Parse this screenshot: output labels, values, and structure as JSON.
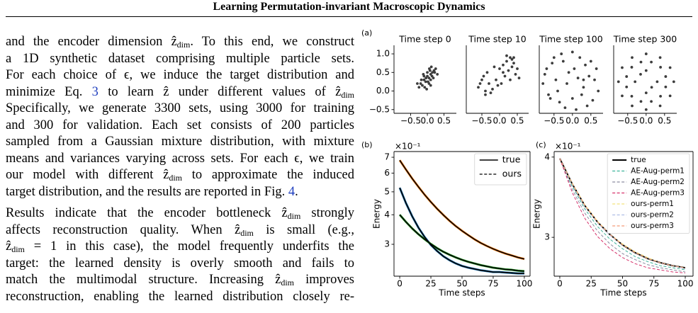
{
  "header": {
    "title": "Learning Permutation-invariant Macroscopic Dynamics"
  },
  "body": {
    "paragraphs": [
      {
        "lines": [
          [
            "and the encoder dimension ẑ",
            {
              "sub": "dim"
            },
            ". To this end, we construct"
          ],
          [
            "a 1D synthetic dataset comprising multiple particle sets."
          ],
          [
            "For each choice of ϵ, we induce the target distribution and"
          ],
          [
            "minimize Eq. ",
            {
              "link": "3"
            },
            " to learn ẑ under different values of ẑ",
            {
              "sub": "dim"
            }
          ],
          [
            "Specifically, we generate 3300 sets, using 3000 for training"
          ],
          [
            "and 300 for validation. Each set consists of 200 particles"
          ],
          [
            "sampled from a Gaussian mixture distribution, with mixture"
          ],
          [
            "means and variances varying across sets. For each ϵ, we train"
          ],
          [
            "our model with different ẑ",
            {
              "sub": "dim"
            },
            " to approximate the induced"
          ],
          [
            "target distribution, and the results are reported in Fig. ",
            {
              "link": "4"
            },
            "."
          ]
        ]
      },
      {
        "lines": [
          [
            "Results indicate that the encoder bottleneck ẑ",
            {
              "sub": "dim"
            },
            " strongly"
          ],
          [
            "affects reconstruction quality. When ẑ",
            {
              "sub": "dim"
            },
            " is small (e.g.,"
          ],
          [
            "ẑ",
            {
              "sub": "dim"
            },
            " = 1 in this case), the model frequently underfits the"
          ],
          [
            "target: the learned density is overly smooth and fails to"
          ],
          [
            "match the multimodal structure. Increasing ẑ",
            {
              "sub": "dim"
            },
            " improves"
          ],
          [
            "reconstruction, enabling the learned distribution closely re-"
          ]
        ]
      }
    ]
  },
  "chart_data": [
    {
      "type": "scatter",
      "label": "(a)",
      "title": "Time step 0",
      "color": "#3d3d3d",
      "x": [
        -0.2,
        -0.1,
        0.0,
        0.1,
        0.15,
        -0.05,
        0.05,
        0.2,
        -0.15,
        0.1,
        0.0,
        -0.25,
        0.25,
        0.05,
        -0.1,
        0.12,
        -0.02,
        0.18,
        -0.18,
        0.08,
        0.3,
        -0.3,
        0.02,
        0.14,
        -0.08,
        0.22,
        -0.12,
        0.06,
        0.1,
        -0.04
      ],
      "y": [
        0.2,
        0.3,
        0.4,
        0.45,
        0.5,
        0.25,
        0.35,
        0.55,
        0.15,
        0.3,
        0.5,
        0.1,
        0.6,
        0.2,
        0.4,
        0.65,
        0.05,
        0.35,
        0.3,
        0.55,
        0.45,
        0.2,
        0.25,
        0.4,
        0.1,
        0.5,
        0.45,
        0.6,
        0.15,
        0.35
      ],
      "xlim": [
        -1.0,
        0.87
      ],
      "ylim": [
        -0.6,
        1.23
      ],
      "xticks": [
        {
          "value": -0.5,
          "label": "−0.5"
        },
        {
          "value": 0,
          "label": "0.0"
        },
        0.5
      ],
      "yticks": [
        {
          "value": -0.5,
          "label": "−0.5"
        },
        {
          "value": 0,
          "label": "0.0"
        },
        0.5,
        {
          "value": 1,
          "label": "1.0"
        }
      ]
    },
    {
      "type": "scatter",
      "title": "Time step 10",
      "color": "#3d3d3d",
      "x": [
        -0.6,
        -0.5,
        -0.4,
        -0.3,
        -0.45,
        -0.2,
        -0.35,
        -0.55,
        -0.1,
        0.0,
        0.1,
        0.2,
        0.3,
        0.4,
        0.5,
        0.15,
        0.25,
        0.35,
        0.05,
        -0.25,
        0.45,
        0.55,
        -0.15,
        0.2,
        0.3,
        -0.4,
        0.1,
        0.4,
        -0.05,
        0.35
      ],
      "y": [
        0.1,
        0.3,
        -0.1,
        0.2,
        0.4,
        0.05,
        0.5,
        0.2,
        0.3,
        0.6,
        0.7,
        0.8,
        0.9,
        0.75,
        0.6,
        0.4,
        0.55,
        0.85,
        0.2,
        -0.05,
        0.45,
        0.35,
        0.65,
        0.95,
        0.3,
        0.0,
        0.5,
        0.9,
        0.15,
        0.65
      ],
      "xlim": [
        -0.94,
        0.82
      ],
      "ylim": [
        -0.6,
        1.23
      ],
      "xticks": [
        {
          "value": -0.5,
          "label": "−0.5"
        },
        {
          "value": 0,
          "label": "0.0"
        },
        0.5
      ]
    },
    {
      "type": "scatter",
      "title": "Time step 100",
      "color": "#3d3d3d",
      "x": [
        -0.8,
        -0.7,
        -0.6,
        -0.5,
        -0.4,
        -0.3,
        -0.2,
        -0.1,
        0.0,
        0.1,
        0.2,
        0.3,
        0.4,
        0.5,
        0.6,
        0.7,
        -0.75,
        -0.55,
        -0.35,
        -0.15,
        0.05,
        0.25,
        0.45,
        0.65,
        -0.65,
        -0.45,
        0.15,
        0.35,
        0.55,
        -0.25,
        0.0,
        0.3
      ],
      "y": [
        0.2,
        0.6,
        -0.2,
        0.9,
        0.0,
        1.0,
        -0.45,
        0.5,
        1.05,
        -0.5,
        0.9,
        0.1,
        -0.4,
        0.8,
        0.3,
        0.0,
        0.45,
        0.75,
        -0.3,
        0.2,
        0.6,
        -0.1,
        0.4,
        0.6,
        -0.1,
        0.3,
        0.35,
        0.7,
        -0.25,
        0.8,
        -0.2,
        0.3
      ],
      "xlim": [
        -0.9,
        0.83
      ],
      "ylim": [
        -0.6,
        1.23
      ],
      "xticks": [
        {
          "value": -0.5,
          "label": "−0.5"
        },
        {
          "value": 0,
          "label": "0.0"
        },
        0.5
      ]
    },
    {
      "type": "scatter",
      "title": "Time step 300",
      "color": "#3d3d3d",
      "x": [
        0.75,
        0.65,
        0.38,
        0,
        -0.38,
        -0.65,
        -0.75,
        -0.65,
        -0.38,
        0,
        0.38,
        0.65,
        0.53,
        0.39,
        0.14,
        -0.14,
        -0.39,
        -0.53,
        -0.53,
        -0.39,
        -0.14,
        0.14,
        0.39,
        0.53,
        0.3,
        0,
        -0.3,
        0,
        0.15,
        -0.15
      ],
      "y": [
        0.25,
        0.63,
        0.9,
        1.0,
        0.9,
        0.63,
        0.25,
        -0.13,
        -0.4,
        -0.5,
        -0.4,
        -0.13,
        0.39,
        0.64,
        0.78,
        0.78,
        0.64,
        0.39,
        0.11,
        -0.14,
        -0.28,
        -0.28,
        -0.14,
        0.11,
        0.25,
        0.55,
        0.25,
        -0.05,
        0.1,
        0.45
      ],
      "xlim": [
        -0.88,
        0.83
      ],
      "ylim": [
        -0.6,
        1.23
      ],
      "xticks": [
        {
          "value": -0.5,
          "label": "−0.5"
        },
        {
          "value": 0,
          "label": "0.0"
        },
        0.5
      ]
    },
    {
      "type": "line",
      "label": "(b)",
      "xlabel": "Time steps",
      "ylabel": "Energy",
      "y_offset_label": "×10⁻¹",
      "yscale": "log",
      "legend": "upper right",
      "x": [
        0,
        5,
        10,
        15,
        20,
        25,
        30,
        35,
        40,
        45,
        50,
        55,
        60,
        65,
        70,
        75,
        80,
        85,
        90,
        95,
        100
      ],
      "xlim": [
        -4.6,
        104.6
      ],
      "ylim": [
        2.2,
        7.4
      ],
      "xticks": [
        0,
        25,
        50,
        75,
        100
      ],
      "yticks": [
        3,
        4,
        5,
        6,
        7
      ],
      "series": [
        {
          "color": "#ff7f0e",
          "width": 3,
          "values": [
            6.8,
            6.21,
            5.69,
            5.25,
            4.86,
            4.53,
            4.24,
            3.99,
            3.77,
            3.58,
            3.42,
            3.28,
            3.15,
            3.04,
            2.95,
            2.87,
            2.8,
            2.74,
            2.69,
            2.64,
            2.6
          ]
        },
        {
          "color": "#1f77b4",
          "width": 3,
          "values": [
            5.2,
            4.48,
            3.94,
            3.53,
            3.22,
            2.98,
            2.81,
            2.67,
            2.57,
            2.49,
            2.43,
            2.39,
            2.36,
            2.33,
            2.31,
            2.29,
            2.29,
            2.28,
            2.27,
            2.26,
            2.26
          ]
        },
        {
          "color": "#2ca02c",
          "width": 3,
          "values": [
            4.0,
            3.73,
            3.5,
            3.31,
            3.15,
            3.01,
            2.89,
            2.79,
            2.71,
            2.64,
            2.58,
            2.53,
            2.49,
            2.45,
            2.42,
            2.39,
            2.37,
            2.35,
            2.34,
            2.32,
            2.31
          ]
        },
        {
          "name": "true",
          "color": "#000000",
          "width": 1.6,
          "dash": false,
          "curves": [
            [
              6.8,
              6.21,
              5.69,
              5.25,
              4.86,
              4.53,
              4.24,
              3.99,
              3.77,
              3.58,
              3.42,
              3.28,
              3.15,
              3.04,
              2.95,
              2.87,
              2.8,
              2.74,
              2.69,
              2.64,
              2.6
            ],
            [
              5.2,
              4.48,
              3.94,
              3.53,
              3.22,
              2.98,
              2.81,
              2.67,
              2.57,
              2.49,
              2.43,
              2.39,
              2.36,
              2.33,
              2.31,
              2.29,
              2.29,
              2.28,
              2.27,
              2.26,
              2.26
            ],
            [
              4.0,
              3.73,
              3.5,
              3.31,
              3.15,
              3.01,
              2.89,
              2.79,
              2.71,
              2.64,
              2.58,
              2.53,
              2.49,
              2.45,
              2.42,
              2.39,
              2.37,
              2.35,
              2.34,
              2.32,
              2.31
            ]
          ]
        },
        {
          "name": "ours",
          "color": "#000000",
          "width": 1.3,
          "dash": true,
          "curves": [
            [
              6.8,
              6.21,
              5.69,
              5.25,
              4.86,
              4.53,
              4.24,
              3.99,
              3.77,
              3.58,
              3.42,
              3.28,
              3.15,
              3.04,
              2.95,
              2.87,
              2.8,
              2.74,
              2.69,
              2.64,
              2.6
            ],
            [
              5.2,
              4.48,
              3.94,
              3.53,
              3.22,
              2.98,
              2.81,
              2.67,
              2.57,
              2.49,
              2.43,
              2.39,
              2.36,
              2.33,
              2.31,
              2.29,
              2.29,
              2.28,
              2.27,
              2.26,
              2.26
            ],
            [
              4.0,
              3.73,
              3.5,
              3.31,
              3.15,
              3.01,
              2.89,
              2.79,
              2.71,
              2.64,
              2.58,
              2.53,
              2.49,
              2.45,
              2.42,
              2.39,
              2.37,
              2.35,
              2.34,
              2.32,
              2.31
            ]
          ]
        }
      ]
    },
    {
      "type": "line",
      "label": "(c)",
      "xlabel": "Time steps",
      "ylabel": "Energy",
      "y_offset_label": "×10⁻¹",
      "yscale": "log",
      "legend": "upper right",
      "x": [
        0,
        10,
        20,
        30,
        40,
        50,
        60,
        70,
        80,
        90,
        100
      ],
      "xlim": [
        -4.5,
        106.2
      ],
      "ylim": [
        2.61,
        4.08
      ],
      "xticks": [
        0,
        25,
        50,
        75,
        100
      ],
      "yticks": [
        3,
        4
      ],
      "series": [
        {
          "name": "true",
          "color": "#000000",
          "width": 2,
          "dash": false,
          "values": [
            3.98,
            3.63,
            3.36,
            3.17,
            3.03,
            2.92,
            2.84,
            2.78,
            2.74,
            2.71,
            2.69
          ]
        },
        {
          "name": "AE-Aug-perm1",
          "color": "#3bb39a",
          "width": 1,
          "dash": true,
          "values": [
            3.98,
            3.6,
            3.32,
            3.12,
            2.98,
            2.88,
            2.8,
            2.75,
            2.71,
            2.69,
            2.67
          ]
        },
        {
          "name": "AE-Aug-perm2",
          "color": "#8a8aa0",
          "width": 1,
          "dash": true,
          "values": [
            3.98,
            3.56,
            3.27,
            3.07,
            2.93,
            2.83,
            2.77,
            2.72,
            2.69,
            2.67,
            2.65
          ]
        },
        {
          "name": "AE-Aug-perm3",
          "color": "#d6336c",
          "width": 1,
          "dash": true,
          "values": [
            3.98,
            3.52,
            3.21,
            3.01,
            2.88,
            2.79,
            2.73,
            2.69,
            2.67,
            2.65,
            2.64
          ]
        },
        {
          "name": "ours-perm1",
          "color": "#f2e27a",
          "width": 1,
          "dash": true,
          "values": [
            3.98,
            3.64,
            3.37,
            3.18,
            3.03,
            2.93,
            2.85,
            2.79,
            2.74,
            2.71,
            2.69
          ]
        },
        {
          "name": "ours-perm2",
          "color": "#aebde6",
          "width": 1,
          "dash": true,
          "values": [
            3.98,
            3.62,
            3.35,
            3.16,
            3.02,
            2.92,
            2.84,
            2.78,
            2.74,
            2.71,
            2.68
          ]
        },
        {
          "name": "ours-perm3",
          "color": "#f39a78",
          "width": 1,
          "dash": true,
          "values": [
            3.98,
            3.63,
            3.36,
            3.17,
            3.03,
            2.92,
            2.84,
            2.78,
            2.74,
            2.71,
            2.69
          ]
        }
      ]
    }
  ]
}
